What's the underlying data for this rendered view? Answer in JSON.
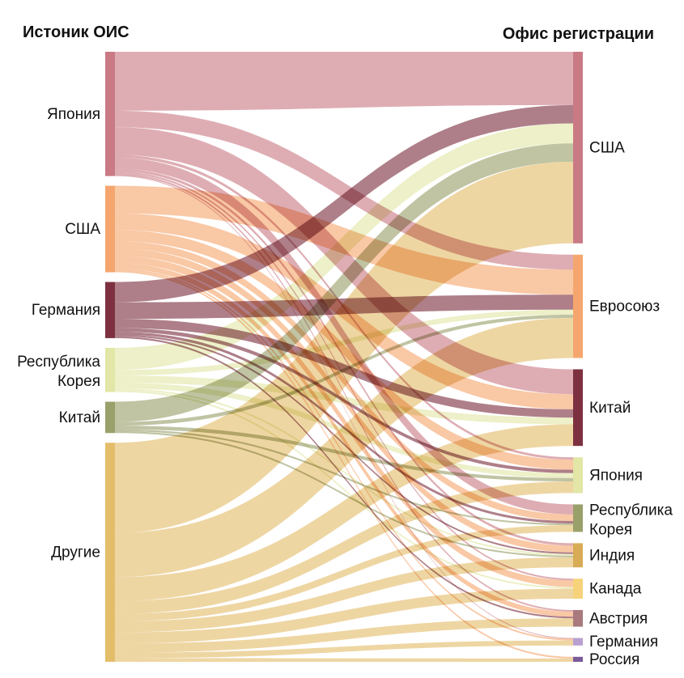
{
  "headers": {
    "left": "Истоник ОИС",
    "right": "Офис регистрации"
  },
  "sources": [
    {
      "id": "jp",
      "label": "Япония",
      "color": "#c97a85"
    },
    {
      "id": "us",
      "label": "США",
      "color": "#f5a66e"
    },
    {
      "id": "de",
      "label": "Германия",
      "color": "#7d3140"
    },
    {
      "id": "kr",
      "label": "Республика Корея",
      "color": "#e2e6a6"
    },
    {
      "id": "cn",
      "label": "Китай",
      "color": "#9aa06a"
    },
    {
      "id": "ot",
      "label": "Другие",
      "color": "#e3bd6a"
    }
  ],
  "targets": [
    {
      "id": "us",
      "label": "США",
      "color": "#c97a85"
    },
    {
      "id": "eu",
      "label": "Евросоюз",
      "color": "#f5a66e"
    },
    {
      "id": "cn",
      "label": "Китай",
      "color": "#7d3140"
    },
    {
      "id": "jp",
      "label": "Япония",
      "color": "#e2e6a6"
    },
    {
      "id": "kr",
      "label": "Республика Корея",
      "color": "#9aa06a"
    },
    {
      "id": "in",
      "label": "Индия",
      "color": "#d8ac56"
    },
    {
      "id": "ca",
      "label": "Канада",
      "color": "#f6d27a"
    },
    {
      "id": "at",
      "label": "Австрия",
      "color": "#a87a7e"
    },
    {
      "id": "ge",
      "label": "Германия",
      "color": "#b8a0d0"
    },
    {
      "id": "ru",
      "label": "Россия",
      "color": "#7a5a9a"
    }
  ],
  "flows": [
    {
      "source": "jp",
      "target": "us",
      "value": 64
    },
    {
      "source": "jp",
      "target": "eu",
      "value": 18
    },
    {
      "source": "jp",
      "target": "cn",
      "value": 30
    },
    {
      "source": "jp",
      "target": "kr",
      "value": 12
    },
    {
      "source": "jp",
      "target": "jp",
      "value": 3
    },
    {
      "source": "jp",
      "target": "in",
      "value": 3
    },
    {
      "source": "jp",
      "target": "ca",
      "value": 2
    },
    {
      "source": "jp",
      "target": "at",
      "value": 2
    },
    {
      "source": "jp",
      "target": "ge",
      "value": 1
    },
    {
      "source": "us",
      "target": "eu",
      "value": 30
    },
    {
      "source": "us",
      "target": "cn",
      "value": 18
    },
    {
      "source": "us",
      "target": "jp",
      "value": 12
    },
    {
      "source": "us",
      "target": "kr",
      "value": 8
    },
    {
      "source": "us",
      "target": "in",
      "value": 8
    },
    {
      "source": "us",
      "target": "ca",
      "value": 8
    },
    {
      "source": "us",
      "target": "at",
      "value": 6
    },
    {
      "source": "us",
      "target": "ge",
      "value": 2
    },
    {
      "source": "us",
      "target": "ru",
      "value": 2
    },
    {
      "source": "de",
      "target": "us",
      "value": 22
    },
    {
      "source": "de",
      "target": "eu",
      "value": 18
    },
    {
      "source": "de",
      "target": "cn",
      "value": 10
    },
    {
      "source": "de",
      "target": "jp",
      "value": 4
    },
    {
      "source": "de",
      "target": "kr",
      "value": 3
    },
    {
      "source": "de",
      "target": "in",
      "value": 2
    },
    {
      "source": "de",
      "target": "at",
      "value": 2
    },
    {
      "source": "kr",
      "target": "us",
      "value": 24
    },
    {
      "source": "kr",
      "target": "eu",
      "value": 6
    },
    {
      "source": "kr",
      "target": "cn",
      "value": 8
    },
    {
      "source": "kr",
      "target": "jp",
      "value": 6
    },
    {
      "source": "kr",
      "target": "in",
      "value": 2
    },
    {
      "source": "kr",
      "target": "ca",
      "value": 2
    },
    {
      "source": "cn",
      "target": "us",
      "value": 22
    },
    {
      "source": "cn",
      "target": "eu",
      "value": 4
    },
    {
      "source": "cn",
      "target": "jp",
      "value": 4
    },
    {
      "source": "cn",
      "target": "kr",
      "value": 2
    },
    {
      "source": "cn",
      "target": "in",
      "value": 2
    },
    {
      "source": "ot",
      "target": "us",
      "value": 98
    },
    {
      "source": "ot",
      "target": "eu",
      "value": 48
    },
    {
      "source": "ot",
      "target": "cn",
      "value": 26
    },
    {
      "source": "ot",
      "target": "jp",
      "value": 14
    },
    {
      "source": "ot",
      "target": "kr",
      "value": 8
    },
    {
      "source": "ot",
      "target": "in",
      "value": 12
    },
    {
      "source": "ot",
      "target": "ca",
      "value": 12
    },
    {
      "source": "ot",
      "target": "at",
      "value": 10
    },
    {
      "source": "ot",
      "target": "ge",
      "value": 6
    },
    {
      "source": "ot",
      "target": "ru",
      "value": 4
    }
  ]
}
